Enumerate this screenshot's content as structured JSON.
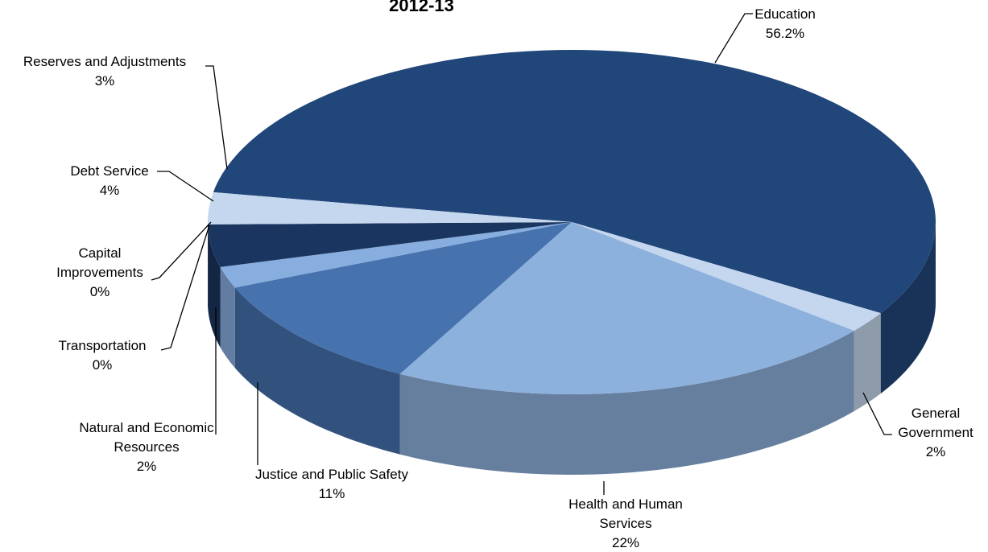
{
  "chart_data": {
    "type": "pie3d",
    "title": "2012-13",
    "categories": [
      "Education",
      "General Government",
      "Health and Human Services",
      "Justice and Public Safety",
      "Natural and Economic Resources",
      "Transportation",
      "Capital Improvements",
      "Debt Service",
      "Reserves and Adjustments"
    ],
    "values": [
      56.2,
      2,
      22,
      11,
      2,
      0,
      0,
      4,
      3
    ],
    "value_labels": [
      "56.2%",
      "2%",
      "22%",
      "11%",
      "2%",
      "0%",
      "0%",
      "4%",
      "3%"
    ],
    "colors": [
      "#21467a",
      "#c5d7ee",
      "#8db1dd",
      "#4672ae",
      "#88aee0",
      "#4f7bb8",
      "#a9c4e6",
      "#1a3660",
      "#c5d7ee"
    ]
  }
}
